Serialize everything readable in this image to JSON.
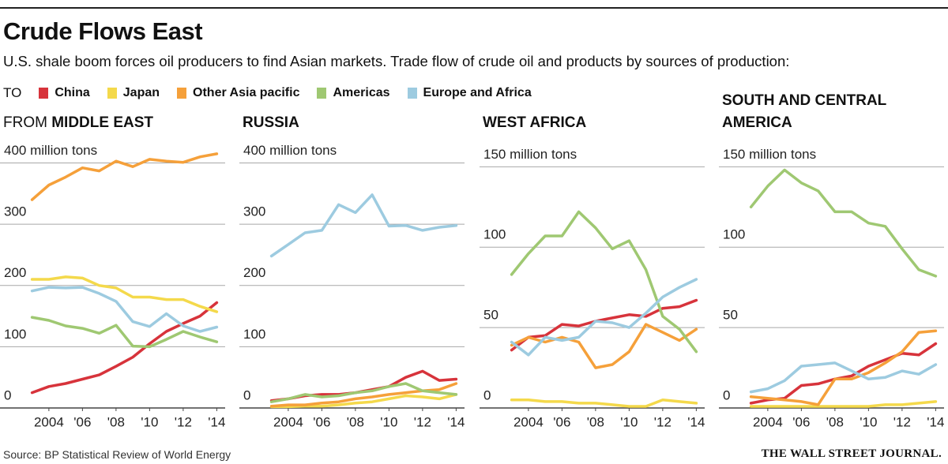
{
  "title": "Crude Flows East",
  "subtitle": "U.S. shale boom forces oil producers to find Asian markets. Trade flow of crude oil and products by sources of production:",
  "legend": {
    "label": "TO",
    "series": [
      {
        "name": "China",
        "color": "#d7333b"
      },
      {
        "name": "Japan",
        "color": "#f4d94b"
      },
      {
        "name": "Other Asia pacific",
        "color": "#f5a03a"
      },
      {
        "name": "Americas",
        "color": "#9fc872"
      },
      {
        "name": "Europe and Africa",
        "color": "#9dcbe0"
      }
    ]
  },
  "from_label": "FROM",
  "chart_data": [
    {
      "type": "line",
      "title": "MIDDLE EAST",
      "x": [
        2003,
        2004,
        2005,
        2006,
        2007,
        2008,
        2009,
        2010,
        2011,
        2012,
        2013,
        2014
      ],
      "xlim": [
        2002.5,
        2014.5
      ],
      "xticks": [
        2004,
        {
          "value": 2006,
          "label": "'06"
        },
        {
          "value": 2008,
          "label": "'08"
        },
        {
          "value": 2010,
          "label": "'10"
        },
        {
          "value": 2012,
          "label": "'12"
        },
        {
          "value": 2014,
          "label": "'14"
        }
      ],
      "ylim": [
        0,
        420
      ],
      "yticks": [
        0,
        100,
        200,
        300,
        {
          "value": 400,
          "label": "400 million tons"
        }
      ],
      "series": [
        {
          "values": [
            25,
            35,
            40,
            47,
            54,
            68,
            83,
            105,
            125,
            138,
            150,
            172
          ]
        },
        {
          "values": [
            210,
            210,
            214,
            212,
            200,
            196,
            181,
            181,
            177,
            177,
            166,
            157
          ]
        },
        {
          "values": [
            340,
            364,
            377,
            392,
            387,
            403,
            394,
            406,
            403,
            401,
            410,
            415
          ]
        },
        {
          "values": [
            148,
            143,
            134,
            130,
            122,
            135,
            101,
            100,
            112,
            125,
            116,
            108
          ]
        },
        {
          "values": [
            191,
            197,
            196,
            197,
            187,
            174,
            141,
            133,
            154,
            134,
            125,
            132
          ]
        }
      ]
    },
    {
      "type": "line",
      "title": "RUSSIA",
      "x": [
        2003,
        2004,
        2005,
        2006,
        2007,
        2008,
        2009,
        2010,
        2011,
        2012,
        2013,
        2014
      ],
      "xlim": [
        2002.5,
        2014.5
      ],
      "xticks": [
        2004,
        {
          "value": 2006,
          "label": "'06"
        },
        {
          "value": 2008,
          "label": "'08"
        },
        {
          "value": 2010,
          "label": "'10"
        },
        {
          "value": 2012,
          "label": "'12"
        },
        {
          "value": 2014,
          "label": "'14"
        }
      ],
      "ylim": [
        0,
        420
      ],
      "yticks": [
        0,
        100,
        200,
        300,
        {
          "value": 400,
          "label": "400 million tons"
        }
      ],
      "series": [
        {
          "values": [
            12,
            15,
            20,
            22,
            22,
            25,
            30,
            35,
            50,
            60,
            45,
            47
          ]
        },
        {
          "values": [
            2,
            2,
            3,
            3,
            5,
            8,
            10,
            15,
            20,
            18,
            15,
            22
          ]
        },
        {
          "values": [
            3,
            5,
            5,
            8,
            10,
            15,
            18,
            22,
            25,
            28,
            30,
            40
          ]
        },
        {
          "values": [
            10,
            15,
            22,
            18,
            20,
            25,
            28,
            35,
            40,
            28,
            25,
            22
          ]
        },
        {
          "values": [
            248,
            267,
            286,
            290,
            332,
            319,
            348,
            297,
            298,
            290,
            295,
            298
          ]
        }
      ]
    },
    {
      "type": "line",
      "title": "WEST AFRICA",
      "x": [
        2003,
        2004,
        2005,
        2006,
        2007,
        2008,
        2009,
        2010,
        2011,
        2012,
        2013,
        2014
      ],
      "xlim": [
        2002.5,
        2014.5
      ],
      "xticks": [
        2004,
        {
          "value": 2006,
          "label": "'06"
        },
        {
          "value": 2008,
          "label": "'08"
        },
        {
          "value": 2010,
          "label": "'10"
        },
        {
          "value": 2012,
          "label": "'12"
        },
        {
          "value": 2014,
          "label": "'14"
        }
      ],
      "ylim": [
        0,
        160
      ],
      "yticks": [
        0,
        50,
        100,
        {
          "value": 150,
          "label": "150 million tons"
        }
      ],
      "series": [
        {
          "values": [
            36,
            44,
            45,
            52,
            51,
            54,
            56,
            58,
            57,
            62,
            63,
            67
          ]
        },
        {
          "values": [
            5,
            5,
            4,
            4,
            3,
            3,
            2,
            1,
            1,
            5,
            4,
            3
          ]
        },
        {
          "values": [
            39,
            44,
            41,
            44,
            41,
            25,
            27,
            35,
            52,
            47,
            42,
            49
          ]
        },
        {
          "values": [
            83,
            96,
            107,
            107,
            122,
            112,
            99,
            104,
            86,
            57,
            49,
            35
          ]
        },
        {
          "values": [
            41,
            33,
            44,
            42,
            44,
            54,
            53,
            50,
            59,
            69,
            75,
            80
          ]
        }
      ]
    },
    {
      "type": "line",
      "title": "SOUTH AND CENTRAL AMERICA",
      "x": [
        2003,
        2004,
        2005,
        2006,
        2007,
        2008,
        2009,
        2010,
        2011,
        2012,
        2013,
        2014
      ],
      "xlim": [
        2002.5,
        2014.5
      ],
      "xticks": [
        2004,
        {
          "value": 2006,
          "label": "'06"
        },
        {
          "value": 2008,
          "label": "'08"
        },
        {
          "value": 2010,
          "label": "'10"
        },
        {
          "value": 2012,
          "label": "'12"
        },
        {
          "value": 2014,
          "label": "'14"
        }
      ],
      "ylim": [
        0,
        160
      ],
      "yticks": [
        0,
        50,
        100,
        {
          "value": 150,
          "label": "150 million tons"
        }
      ],
      "series": [
        {
          "values": [
            3,
            5,
            6,
            14,
            15,
            18,
            20,
            26,
            30,
            34,
            33,
            40
          ]
        },
        {
          "values": [
            1,
            1,
            1,
            1,
            1,
            1,
            1,
            1,
            2,
            2,
            3,
            4
          ]
        },
        {
          "values": [
            7,
            6,
            5,
            4,
            2,
            18,
            18,
            22,
            28,
            35,
            47,
            48
          ]
        },
        {
          "values": [
            125,
            138,
            148,
            140,
            135,
            122,
            122,
            115,
            113,
            99,
            86,
            82
          ]
        },
        {
          "values": [
            10,
            12,
            17,
            26,
            27,
            28,
            23,
            18,
            19,
            23,
            21,
            27
          ]
        }
      ]
    }
  ],
  "source": "Source: BP Statistical Review of World Energy",
  "publisher": "THE WALL STREET JOURNAL."
}
